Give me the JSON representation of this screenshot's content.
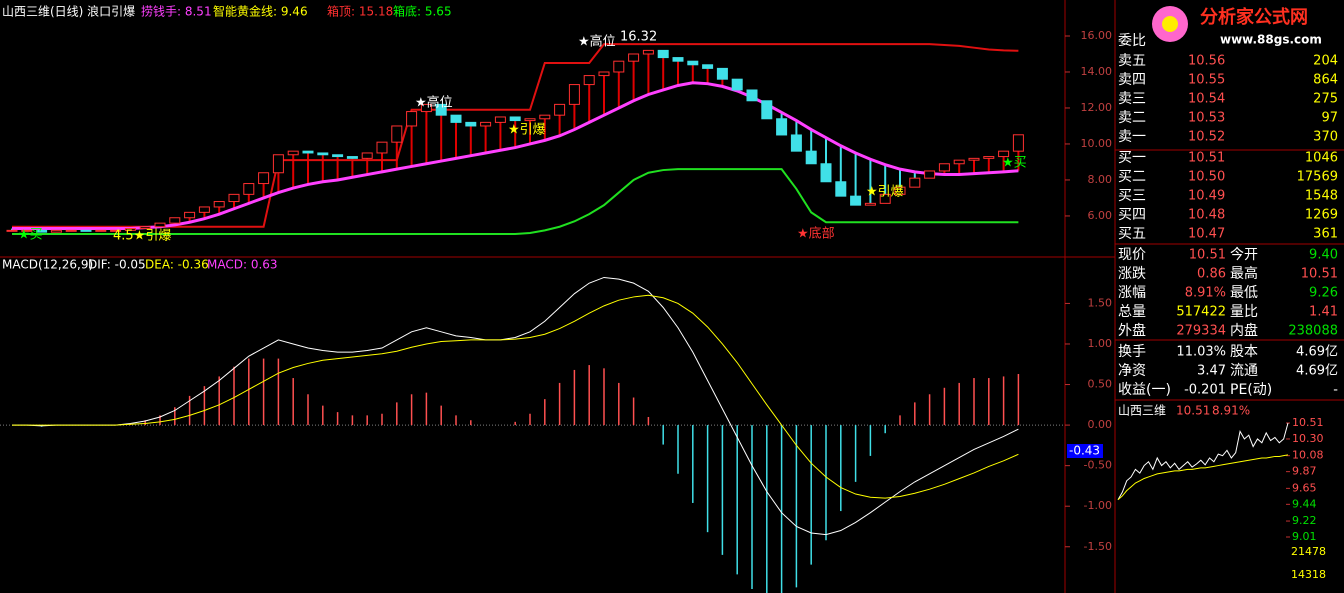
{
  "header": {
    "title": "山西三维(日线) 浪口引爆",
    "indicators": [
      {
        "text": "捞钱手: 8.51",
        "color": "#ff40ff"
      },
      {
        "text": "智能黄金线: 9.46",
        "color": "#ffff00"
      },
      {
        "text": "箱顶: 15.18",
        "color": "#ff3030"
      },
      {
        "text": "箱底: 5.65",
        "color": "#00ff00"
      }
    ]
  },
  "main": {
    "ylim": [
      3.83,
      18
    ],
    "yticks": [
      {
        "value": 16,
        "label": "16.00"
      },
      {
        "value": 14,
        "label": "14.00"
      },
      {
        "value": 12,
        "label": "12.00"
      },
      {
        "value": 10,
        "label": "10.00"
      },
      {
        "value": 8,
        "label": "8.00"
      },
      {
        "value": 6,
        "label": "6.00"
      }
    ],
    "close": [
      5.2,
      5.2,
      5.1,
      5.2,
      5.2,
      5.15,
      5.2,
      5.2,
      5.3,
      5.4,
      5.6,
      5.9,
      6.2,
      6.5,
      6.8,
      7.2,
      7.8,
      8.4,
      9.4,
      9.6,
      9.5,
      9.4,
      9.3,
      9.2,
      9.5,
      10.1,
      11.0,
      11.8,
      12.2,
      11.6,
      11.2,
      11.0,
      11.2,
      11.5,
      11.3,
      11.4,
      11.6,
      12.2,
      13.3,
      13.8,
      14.0,
      14.6,
      15.0,
      15.2,
      14.8,
      14.6,
      14.4,
      14.2,
      13.6,
      13.0,
      12.4,
      11.4,
      10.5,
      9.6,
      8.9,
      7.9,
      7.1,
      6.6,
      6.7,
      7.2,
      7.6,
      8.1,
      8.5,
      8.9,
      9.1,
      9.2,
      9.3,
      9.6,
      10.51
    ],
    "box_top": [
      5.4,
      5.4,
      5.4,
      5.4,
      5.4,
      5.4,
      5.4,
      5.4,
      5.4,
      5.4,
      5.4,
      5.4,
      5.4,
      5.4,
      5.4,
      5.4,
      5.4,
      5.4,
      9.1,
      9.1,
      9.1,
      9.1,
      9.1,
      9.1,
      9.1,
      9.1,
      9.1,
      11.9,
      11.9,
      11.9,
      11.9,
      11.9,
      11.9,
      11.9,
      11.9,
      11.9,
      14.5,
      14.5,
      14.5,
      14.5,
      15.55,
      15.55,
      15.55,
      15.55,
      15.55,
      15.55,
      15.55,
      15.55,
      15.55,
      15.55,
      15.55,
      15.55,
      15.55,
      15.55,
      15.55,
      15.55,
      15.55,
      15.55,
      15.55,
      15.55,
      15.55,
      15.55,
      15.55,
      15.5,
      15.45,
      15.35,
      15.25,
      15.2,
      15.18
    ],
    "box_bottom": [
      5.0,
      5.0,
      5.0,
      5.0,
      5.0,
      5.0,
      5.0,
      5.0,
      5.0,
      5.0,
      5.0,
      5.0,
      5.0,
      5.0,
      5.0,
      5.0,
      5.0,
      5.0,
      5.0,
      5.0,
      5.0,
      5.0,
      5.0,
      5.0,
      5.0,
      5.0,
      5.0,
      5.0,
      5.0,
      5.0,
      5.0,
      5.0,
      5.0,
      5.0,
      5.0,
      5.05,
      5.2,
      5.4,
      5.7,
      6.1,
      6.6,
      7.3,
      8.0,
      8.4,
      8.55,
      8.6,
      8.6,
      8.6,
      8.6,
      8.6,
      8.6,
      8.6,
      8.6,
      7.5,
      6.2,
      5.65,
      5.65,
      5.65,
      5.65,
      5.65,
      5.65,
      5.65,
      5.65,
      5.65,
      5.65,
      5.65,
      5.65,
      5.65,
      5.65
    ],
    "line": [
      5.3,
      5.3,
      5.3,
      5.3,
      5.3,
      5.3,
      5.3,
      5.3,
      5.3,
      5.35,
      5.4,
      5.5,
      5.65,
      5.85,
      6.1,
      6.4,
      6.7,
      7.0,
      7.3,
      7.55,
      7.75,
      7.9,
      8.0,
      8.15,
      8.3,
      8.45,
      8.6,
      8.75,
      8.9,
      9.05,
      9.2,
      9.35,
      9.5,
      9.65,
      9.8,
      10.0,
      10.2,
      10.45,
      10.8,
      11.2,
      11.6,
      12.0,
      12.4,
      12.75,
      13.0,
      13.25,
      13.4,
      13.35,
      13.2,
      12.95,
      12.6,
      12.2,
      11.75,
      11.3,
      10.8,
      10.35,
      9.9,
      9.5,
      9.15,
      8.85,
      8.6,
      8.45,
      8.35,
      8.3,
      8.3,
      8.35,
      8.4,
      8.45,
      8.51
    ],
    "annotations": [
      "★高位",
      "★引爆",
      "★高位",
      "16.32",
      "★底部",
      "★引爆",
      "★买",
      "★买",
      "4.5★引爆"
    ]
  },
  "macd": {
    "header": [
      {
        "text": "MACD(12,26,9)",
        "color": "#ffffff"
      },
      {
        "text": "DIF: -0.05",
        "color": "#ffffff"
      },
      {
        "text": "DEA: -0.36",
        "color": "#ffff00"
      },
      {
        "text": "MACD: 0.63",
        "color": "#ff40ff"
      }
    ],
    "ylim": [
      -2.07,
      2.06
    ],
    "yticks": [
      {
        "value": 1.5,
        "label": "1.50"
      },
      {
        "value": 1,
        "label": "1.00"
      },
      {
        "value": 0.5,
        "label": "0.50"
      },
      {
        "value": 0,
        "label": "0.00"
      },
      {
        "value": -0.5,
        "label": "-0.50"
      },
      {
        "value": -1,
        "label": "-1.00"
      },
      {
        "value": -1.5,
        "label": "-1.50"
      }
    ],
    "cursor_label": "-0.43",
    "dif": [
      0,
      0,
      -0.01,
      0,
      0,
      0,
      0,
      0,
      0.02,
      0.05,
      0.1,
      0.18,
      0.3,
      0.42,
      0.55,
      0.7,
      0.85,
      0.95,
      1.05,
      1.0,
      0.95,
      0.92,
      0.9,
      0.9,
      0.92,
      0.95,
      1.05,
      1.15,
      1.2,
      1.15,
      1.1,
      1.08,
      1.05,
      1.05,
      1.08,
      1.15,
      1.28,
      1.45,
      1.62,
      1.75,
      1.82,
      1.8,
      1.75,
      1.65,
      1.45,
      1.2,
      0.9,
      0.55,
      0.2,
      -0.15,
      -0.5,
      -0.82,
      -1.08,
      -1.25,
      -1.33,
      -1.35,
      -1.3,
      -1.2,
      -1.08,
      -0.95,
      -0.82,
      -0.7,
      -0.6,
      -0.5,
      -0.4,
      -0.3,
      -0.22,
      -0.14,
      -0.05
    ],
    "dea": [
      0,
      0,
      0,
      0,
      0,
      0,
      0,
      0,
      0.01,
      0.02,
      0.04,
      0.07,
      0.12,
      0.18,
      0.25,
      0.34,
      0.44,
      0.54,
      0.64,
      0.71,
      0.76,
      0.8,
      0.82,
      0.84,
      0.86,
      0.88,
      0.91,
      0.96,
      1.0,
      1.03,
      1.04,
      1.05,
      1.05,
      1.05,
      1.06,
      1.08,
      1.12,
      1.19,
      1.28,
      1.38,
      1.47,
      1.54,
      1.58,
      1.6,
      1.57,
      1.5,
      1.38,
      1.21,
      1.0,
      0.77,
      0.51,
      0.25,
      0.0,
      -0.25,
      -0.47,
      -0.64,
      -0.77,
      -0.85,
      -0.89,
      -0.9,
      -0.88,
      -0.84,
      -0.79,
      -0.73,
      -0.66,
      -0.59,
      -0.51,
      -0.44,
      -0.36
    ],
    "bars": [
      0,
      0,
      -0.02,
      0,
      0,
      0,
      0,
      0,
      0.02,
      0.06,
      0.12,
      0.22,
      0.36,
      0.48,
      0.6,
      0.72,
      0.82,
      0.82,
      0.82,
      0.58,
      0.38,
      0.24,
      0.16,
      0.12,
      0.12,
      0.14,
      0.28,
      0.38,
      0.4,
      0.24,
      0.12,
      0.06,
      0,
      0,
      0.04,
      0.14,
      0.32,
      0.52,
      0.68,
      0.74,
      0.7,
      0.52,
      0.34,
      0.1,
      -0.24,
      -0.6,
      -0.96,
      -1.32,
      -1.6,
      -1.84,
      -2.02,
      -2.14,
      -2.16,
      -2.0,
      -1.72,
      -1.42,
      -1.06,
      -0.7,
      -0.38,
      -0.1,
      0.12,
      0.28,
      0.38,
      0.46,
      0.52,
      0.58,
      0.58,
      0.6,
      0.63
    ]
  },
  "logo": {
    "name": "分析家公式网",
    "url": "www.88gs.com"
  },
  "quote": {
    "title": "委比",
    "book": [
      [
        "卖五",
        "10.56",
        "204"
      ],
      [
        "卖四",
        "10.55",
        "864"
      ],
      [
        "卖三",
        "10.54",
        "275"
      ],
      [
        "卖二",
        "10.53",
        "97"
      ],
      [
        "卖一",
        "10.52",
        "370"
      ],
      [
        "买一",
        "10.51",
        "1046"
      ],
      [
        "买二",
        "10.50",
        "17569"
      ],
      [
        "买三",
        "10.49",
        "1548"
      ],
      [
        "买四",
        "10.48",
        "1269"
      ],
      [
        "买五",
        "10.47",
        "361"
      ]
    ],
    "stats": [
      [
        "现价",
        "10.51",
        "今开",
        "9.40"
      ],
      [
        "涨跌",
        "0.86",
        "最高",
        "10.51"
      ],
      [
        "涨幅",
        "8.91%",
        "最低",
        "9.26"
      ],
      [
        "总量",
        "517422",
        "量比",
        "1.41"
      ],
      [
        "外盘",
        "279334",
        "内盘",
        "238088"
      ]
    ],
    "info": [
      [
        "换手",
        "11.03%",
        "股本",
        "4.69亿"
      ],
      [
        "净资",
        "3.47",
        "流通",
        "4.69亿"
      ],
      [
        "收益(一)",
        "-0.201",
        "PE(动)",
        "-"
      ]
    ]
  },
  "mini": {
    "name": "山西三维",
    "price": "10.51",
    "change": "8.91%",
    "ylim": [
      9.01,
      10.51
    ],
    "yticks": [
      {
        "value": 10.51,
        "label": "10.51"
      },
      {
        "value": 10.3,
        "label": "10.30"
      },
      {
        "value": 10.08,
        "label": "10.08"
      },
      {
        "value": 9.87,
        "label": "9.87"
      },
      {
        "value": 9.65,
        "label": "9.65"
      },
      {
        "value": 9.44,
        "label": "9.44"
      },
      {
        "value": 9.22,
        "label": "9.22"
      },
      {
        "value": 9.01,
        "label": "9.01"
      }
    ],
    "volume_labels": [
      "21478",
      "14318"
    ],
    "values": [
      9.5,
      9.6,
      9.75,
      9.8,
      9.9,
      9.85,
      9.95,
      10.0,
      9.9,
      10.05,
      9.95,
      10.0,
      9.92,
      9.98,
      9.9,
      9.95,
      10.0,
      9.93,
      9.97,
      10.02,
      9.96,
      10.05,
      10.0,
      10.1,
      10.08,
      10.15,
      10.05,
      10.12,
      10.4,
      10.3,
      10.35,
      10.2,
      10.3,
      10.25,
      10.38,
      10.28,
      10.32,
      10.25,
      10.3,
      10.51
    ],
    "avg": [
      9.5,
      9.55,
      9.62,
      9.67,
      9.72,
      9.75,
      9.78,
      9.8,
      9.82,
      9.84,
      9.85,
      9.86,
      9.87,
      9.88,
      9.88,
      9.89,
      9.9,
      9.9,
      9.91,
      9.92,
      9.92,
      9.93,
      9.94,
      9.95,
      9.96,
      9.97,
      9.98,
      9.99,
      10.0,
      10.01,
      10.02,
      10.03,
      10.04,
      10.05,
      10.05,
      10.06,
      10.07,
      10.07,
      10.08,
      10.09
    ]
  }
}
